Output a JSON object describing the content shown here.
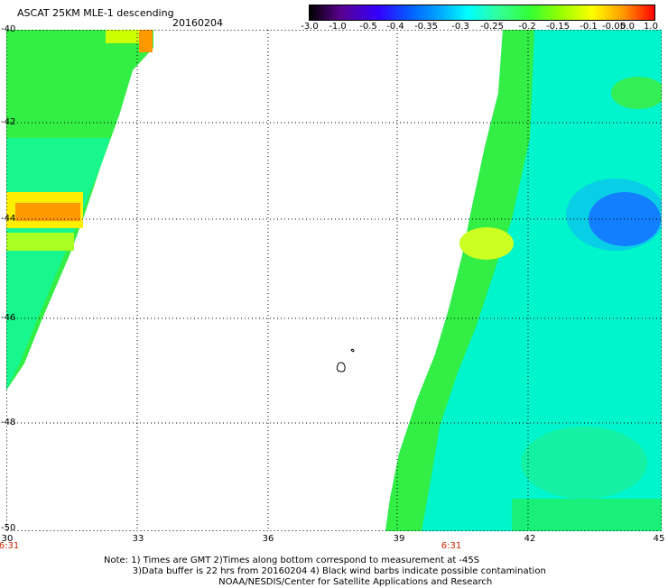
{
  "header": {
    "title": "ASCAT 25KM MLE-1 descending",
    "date": "20160204"
  },
  "colorbar": {
    "labels": [
      "-3.0",
      "-1.0",
      "-0.5",
      "-0.4",
      "-0.35",
      "-0.3",
      "-0.25",
      "-0.2",
      "-0.15",
      "-0.1",
      "-0.05",
      "0.0",
      "1.0"
    ],
    "colors": [
      "#000000",
      "#5a0090",
      "#3300ff",
      "#0066ff",
      "#00aaff",
      "#00ffff",
      "#33ff99",
      "#33ff33",
      "#99ff00",
      "#ffff00",
      "#ff9900",
      "#ff0000"
    ]
  },
  "map": {
    "lat_labels": [
      "-40",
      "-42",
      "-44",
      "-46",
      "-48",
      "-50"
    ],
    "lon_labels": [
      "30",
      "33",
      "36",
      "39",
      "42",
      "45"
    ],
    "time_labels": [
      "6:31",
      "6:31"
    ],
    "swath_colors": {
      "cyan": "#00ffee",
      "green": "#22ee44",
      "lime": "#88ff22",
      "yellow": "#ffff00",
      "orange": "#ff9900",
      "blue": "#0044ee"
    }
  },
  "footer": {
    "line1": "Note: 1) Times are GMT 2)Times along bottom correspond to measurement at -45S",
    "line2": "3)Data buffer is 22 hrs from 20160204 4) Black wind barbs indicate possible contamination",
    "line3": "NOAA/NESDIS/Center for Satellite Applications and Research"
  }
}
